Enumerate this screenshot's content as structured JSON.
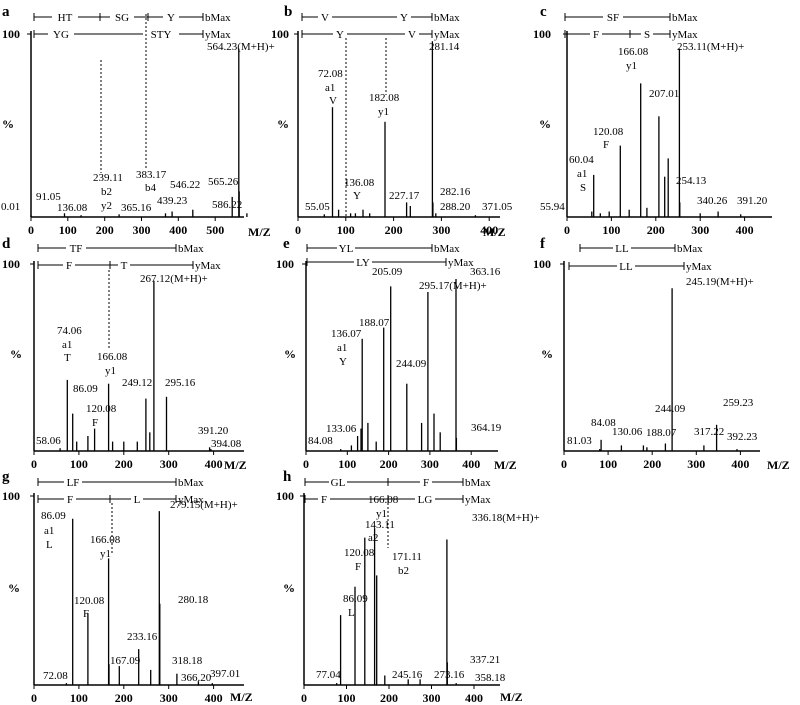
{
  "chart_data": [
    {
      "panel": "a",
      "type": "bar",
      "xlim": [
        0,
        600
      ],
      "ylim": [
        0,
        100
      ],
      "xticks": [
        0,
        100,
        200,
        300,
        400,
        500
      ],
      "xlabel": "M/Z",
      "ylabel": "%",
      "ytick_top": "100",
      "peaks": [
        {
          "mz": 0.01,
          "i": 1
        },
        {
          "mz": 91.05,
          "i": 2
        },
        {
          "mz": 136.08,
          "i": 1
        },
        {
          "mz": 239.11,
          "i": 1.5
        },
        {
          "mz": 365.16,
          "i": 2
        },
        {
          "mz": 383.17,
          "i": 3
        },
        {
          "mz": 439.23,
          "i": 4
        },
        {
          "mz": 546.22,
          "i": 11
        },
        {
          "mz": 564.23,
          "i": 92
        },
        {
          "mz": 565.26,
          "i": 14
        },
        {
          "mz": 586.22,
          "i": 2
        }
      ],
      "labels": [
        "0.01",
        "91.05",
        "136.08",
        "239.11",
        "b2",
        "y2",
        "365.16",
        "383.17",
        "b4",
        "439.23",
        "546.22",
        "564.23(M+H)+",
        "565.26",
        "586.22"
      ],
      "ion_lines": [
        {
          "name": "b",
          "segments": [
            "HT",
            "SG",
            "Y"
          ],
          "end": "bMax"
        },
        {
          "name": "y",
          "segments": [
            "YG",
            "STY"
          ],
          "end": "yMax"
        }
      ],
      "cleavage_mz": [
        239.11,
        383.17
      ]
    },
    {
      "panel": "b",
      "type": "bar",
      "xlim": [
        0,
        430
      ],
      "ylim": [
        0,
        100
      ],
      "xticks": [
        0,
        100,
        200,
        300,
        400
      ],
      "xlabel": "M/Z",
      "ylabel": "%",
      "ytick_top": "100",
      "peaks": [
        {
          "mz": 55.05,
          "i": 1.5
        },
        {
          "mz": 72.08,
          "i": 60
        },
        {
          "mz": 85.0,
          "i": 4
        },
        {
          "mz": 110.0,
          "i": 2
        },
        {
          "mz": 120.0,
          "i": 2
        },
        {
          "mz": 136.08,
          "i": 4
        },
        {
          "mz": 150.0,
          "i": 2
        },
        {
          "mz": 182.08,
          "i": 52
        },
        {
          "mz": 227.17,
          "i": 8
        },
        {
          "mz": 235.0,
          "i": 6
        },
        {
          "mz": 281.14,
          "i": 96
        },
        {
          "mz": 282.16,
          "i": 8
        },
        {
          "mz": 288.2,
          "i": 2
        },
        {
          "mz": 371.05,
          "i": 1
        }
      ],
      "labels": [
        "55.05",
        "72.08",
        "a1",
        "V",
        "136.08",
        "Y",
        "182.08",
        "y1",
        "227.17",
        "281.14",
        "282.16",
        "288.20",
        "371.05"
      ],
      "ion_lines": [
        {
          "name": "b",
          "segments": [
            "V",
            "Y"
          ],
          "end": "bMax"
        },
        {
          "name": "y",
          "segments": [
            "Y",
            "V"
          ],
          "end": "yMax"
        }
      ],
      "cleavage_mz": [
        100,
        182.08
      ]
    },
    {
      "panel": "c",
      "type": "bar",
      "xlim": [
        0,
        430
      ],
      "ylim": [
        0,
        100
      ],
      "xticks": [
        0,
        100,
        200,
        300,
        400
      ],
      "xlabel": "M/Z",
      "ylabel": "%",
      "ytick_top": "100",
      "peaks": [
        {
          "mz": 55.94,
          "i": 3
        },
        {
          "mz": 60.04,
          "i": 23
        },
        {
          "mz": 75.0,
          "i": 2
        },
        {
          "mz": 95.0,
          "i": 3
        },
        {
          "mz": 120.08,
          "i": 39
        },
        {
          "mz": 140.0,
          "i": 4
        },
        {
          "mz": 166.08,
          "i": 73
        },
        {
          "mz": 180.0,
          "i": 5
        },
        {
          "mz": 207.01,
          "i": 55
        },
        {
          "mz": 220.0,
          "i": 22
        },
        {
          "mz": 228.0,
          "i": 32
        },
        {
          "mz": 253.11,
          "i": 92
        },
        {
          "mz": 254.13,
          "i": 8
        },
        {
          "mz": 300.0,
          "i": 2
        },
        {
          "mz": 340.26,
          "i": 3
        },
        {
          "mz": 391.2,
          "i": 1.5
        }
      ],
      "labels": [
        "55.94",
        "60.04",
        "a1",
        "S",
        "120.08",
        "F",
        "166.08",
        "y1",
        "207.01",
        "253.11(M+H)+",
        "254.13",
        "340.26",
        "391.20"
      ],
      "ion_lines": [
        {
          "name": "b",
          "segments": [
            "SF"
          ],
          "end": "bMax"
        },
        {
          "name": "y",
          "segments": [
            "F",
            "S"
          ],
          "end": "yMax"
        }
      ],
      "cleavage_mz": []
    },
    {
      "panel": "d",
      "type": "bar",
      "xlim": [
        0,
        430
      ],
      "ylim": [
        0,
        100
      ],
      "xticks": [
        0,
        100,
        200,
        300,
        400
      ],
      "xlabel": "M/Z",
      "ylabel": "%",
      "ytick_top": "100",
      "peaks": [
        {
          "mz": 58.06,
          "i": 1.5
        },
        {
          "mz": 74.06,
          "i": 38
        },
        {
          "mz": 86.09,
          "i": 20
        },
        {
          "mz": 95.0,
          "i": 5
        },
        {
          "mz": 120.08,
          "i": 8
        },
        {
          "mz": 135.0,
          "i": 12
        },
        {
          "mz": 166.08,
          "i": 36
        },
        {
          "mz": 175.0,
          "i": 5
        },
        {
          "mz": 200.0,
          "i": 5
        },
        {
          "mz": 230.0,
          "i": 5
        },
        {
          "mz": 249.12,
          "i": 28
        },
        {
          "mz": 258.0,
          "i": 10
        },
        {
          "mz": 267.12,
          "i": 91
        },
        {
          "mz": 295.16,
          "i": 29
        },
        {
          "mz": 391.2,
          "i": 2
        },
        {
          "mz": 394.08,
          "i": 1
        }
      ],
      "labels": [
        "58.06",
        "74.06",
        "a1",
        "T",
        "86.09",
        "120.08",
        "F",
        "166.08",
        "y1",
        "249.12",
        "267.12(M+H)+",
        "295.16",
        "391.20",
        "394.08"
      ],
      "ion_lines": [
        {
          "name": "b",
          "segments": [
            "TF"
          ],
          "end": "bMax"
        },
        {
          "name": "y",
          "segments": [
            "F",
            "T"
          ],
          "end": "yMax"
        }
      ],
      "cleavage_mz": [
        166.08
      ]
    },
    {
      "panel": "e",
      "type": "bar",
      "xlim": [
        0,
        430
      ],
      "ylim": [
        0,
        100
      ],
      "xticks": [
        0,
        100,
        200,
        300,
        400
      ],
      "xlabel": "M/Z",
      "ylabel": "%",
      "ytick_top": "100",
      "peaks": [
        {
          "mz": 84.08,
          "i": 1
        },
        {
          "mz": 110.0,
          "i": 3
        },
        {
          "mz": 125.0,
          "i": 8
        },
        {
          "mz": 133.06,
          "i": 12
        },
        {
          "mz": 136.07,
          "i": 60
        },
        {
          "mz": 150.0,
          "i": 15
        },
        {
          "mz": 170.0,
          "i": 5
        },
        {
          "mz": 188.07,
          "i": 66
        },
        {
          "mz": 205.09,
          "i": 88
        },
        {
          "mz": 244.09,
          "i": 36
        },
        {
          "mz": 280.0,
          "i": 15
        },
        {
          "mz": 295.17,
          "i": 85
        },
        {
          "mz": 310.0,
          "i": 20
        },
        {
          "mz": 325.0,
          "i": 10
        },
        {
          "mz": 363.16,
          "i": 92
        },
        {
          "mz": 364.19,
          "i": 7
        }
      ],
      "labels": [
        "84.08",
        "133.06",
        "136.07",
        "a1",
        "Y",
        "188.07",
        "205.09",
        "244.09",
        "295.17(M+H)+",
        "363.16",
        "364.19"
      ],
      "ion_lines": [
        {
          "name": "b",
          "segments": [
            "YL"
          ],
          "end": "bMax"
        },
        {
          "name": "y",
          "segments": [
            "LY"
          ],
          "end": "yMax"
        }
      ],
      "cleavage_mz": []
    },
    {
      "panel": "f",
      "type": "bar",
      "xlim": [
        0,
        430
      ],
      "ylim": [
        0,
        100
      ],
      "xticks": [
        0,
        100,
        200,
        300,
        400
      ],
      "xlabel": "M/Z",
      "ylabel": "%",
      "ytick_top": "100",
      "peaks": [
        {
          "mz": 81.03,
          "i": 1
        },
        {
          "mz": 84.08,
          "i": 6
        },
        {
          "mz": 130.06,
          "i": 3
        },
        {
          "mz": 180.0,
          "i": 3
        },
        {
          "mz": 188.07,
          "i": 2
        },
        {
          "mz": 230.0,
          "i": 4
        },
        {
          "mz": 245.19,
          "i": 87
        },
        {
          "mz": 317.22,
          "i": 3
        },
        {
          "mz": 346.0,
          "i": 14
        },
        {
          "mz": 392.23,
          "i": 1
        }
      ],
      "labels": [
        "81.03",
        "84.08",
        "130.06",
        "188.07",
        "244.09",
        "245.19(M+H)+",
        "259.23",
        "317.22",
        "392.23"
      ],
      "ion_lines": [
        {
          "name": "b",
          "segments": [
            "LL"
          ],
          "end": "bMax"
        },
        {
          "name": "y",
          "segments": [
            "LL"
          ],
          "end": "yMax"
        }
      ],
      "cleavage_mz": []
    },
    {
      "panel": "g",
      "type": "bar",
      "xlim": [
        0,
        430
      ],
      "ylim": [
        0,
        100
      ],
      "xticks": [
        0,
        100,
        200,
        300,
        400
      ],
      "xlabel": "M/Z",
      "ylabel": "%",
      "ytick_top": "100",
      "peaks": [
        {
          "mz": 72.08,
          "i": 1
        },
        {
          "mz": 86.09,
          "i": 88
        },
        {
          "mz": 120.08,
          "i": 38
        },
        {
          "mz": 166.08,
          "i": 67
        },
        {
          "mz": 167.09,
          "i": 11
        },
        {
          "mz": 190.0,
          "i": 10
        },
        {
          "mz": 233.16,
          "i": 19
        },
        {
          "mz": 260.0,
          "i": 8
        },
        {
          "mz": 279.15,
          "i": 92
        },
        {
          "mz": 280.18,
          "i": 43
        },
        {
          "mz": 318.18,
          "i": 6
        },
        {
          "mz": 366.2,
          "i": 2
        },
        {
          "mz": 397.01,
          "i": 1
        }
      ],
      "labels": [
        "72.08",
        "86.09",
        "a1",
        "L",
        "120.08",
        "F",
        "166.08",
        "y1",
        "167.09",
        "233.16",
        "279.15(M+H)+",
        "280.18",
        "318.18",
        "366.20",
        "397.01"
      ],
      "ion_lines": [
        {
          "name": "b",
          "segments": [
            "LF"
          ],
          "end": "bMax"
        },
        {
          "name": "y",
          "segments": [
            "F",
            "L"
          ],
          "end": "yMax"
        }
      ],
      "cleavage_mz": [
        166.08
      ]
    },
    {
      "panel": "h",
      "type": "bar",
      "xlim": [
        0,
        430
      ],
      "ylim": [
        0,
        100
      ],
      "xticks": [
        0,
        100,
        200,
        300,
        400
      ],
      "xlabel": "M/Z",
      "ylabel": "%",
      "ytick_top": "100",
      "peaks": [
        {
          "mz": 77.04,
          "i": 1
        },
        {
          "mz": 86.09,
          "i": 37
        },
        {
          "mz": 120.08,
          "i": 52
        },
        {
          "mz": 143.11,
          "i": 78
        },
        {
          "mz": 166.08,
          "i": 83
        },
        {
          "mz": 171.11,
          "i": 58
        },
        {
          "mz": 190.0,
          "i": 5
        },
        {
          "mz": 245.16,
          "i": 3
        },
        {
          "mz": 273.16,
          "i": 3
        },
        {
          "mz": 336.18,
          "i": 77
        },
        {
          "mz": 337.21,
          "i": 12
        },
        {
          "mz": 358.18,
          "i": 1
        }
      ],
      "labels": [
        "77.04",
        "86.09",
        "L",
        "120.08",
        "F",
        "143.11",
        "a2",
        "166.08",
        "y1",
        "171.11",
        "b2",
        "245.16",
        "273.16",
        "336.18(M+H)+",
        "337.21",
        "358.18"
      ],
      "ion_lines": [
        {
          "name": "b",
          "segments": [
            "GL",
            "F"
          ],
          "end": "bMax"
        },
        {
          "name": "y",
          "segments": [
            "F",
            "LG"
          ],
          "end": "yMax"
        }
      ],
      "cleavage_mz": [
        171.11
      ]
    }
  ]
}
